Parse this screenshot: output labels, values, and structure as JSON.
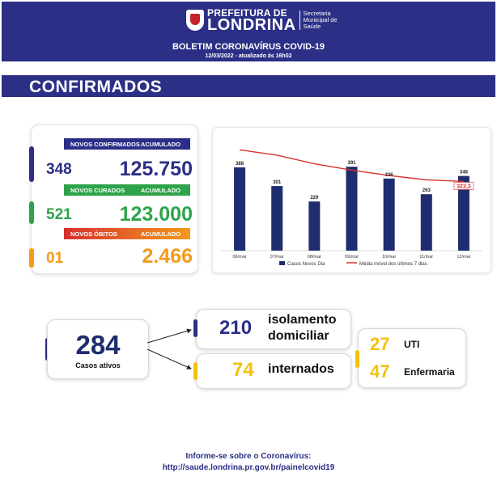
{
  "header": {
    "logo_line1": "PREFEITURA DE",
    "logo_line2": "LONDRINA",
    "secretaria": [
      "Secretaria",
      "Municipal de",
      "Saúde"
    ],
    "title": "BOLETIM CORONAVÍRUS COVID-19",
    "date": "12/03/2022 - atualizado às 16h02"
  },
  "section_title": "CONFIRMADOS",
  "stats": {
    "confirmados": {
      "label": "NOVOS CONFIRMADOS",
      "acc_label": "ACUMULADO",
      "new": "348",
      "total": "125.750",
      "color": "#2b2f86"
    },
    "curados": {
      "label": "NOVOS CURADOS",
      "acc_label": "ACUMULADO",
      "new": "521",
      "total": "123.000",
      "color": "#2ea34a"
    },
    "obitos": {
      "label": "NOVOS ÓBITOS",
      "acc_label": "ACUMULADO",
      "new": "01",
      "total": "2.466",
      "color": "#f39a1d"
    }
  },
  "chart_data": {
    "type": "bar",
    "categories": [
      "06/mar",
      "07/mar",
      "08/mar",
      "09/mar",
      "10/mar",
      "11/mar",
      "12/mar"
    ],
    "series": [
      {
        "name": "Casos Novos Dia",
        "type": "bar",
        "values": [
          388,
          301,
          229,
          391,
          336,
          263,
          348
        ],
        "color": "#1f2d6e"
      },
      {
        "name": "Média móvel dos últimos 7 dias",
        "type": "line",
        "values": [
          470,
          445,
          405,
          375,
          350,
          330,
          322.3
        ],
        "color": "#d7312f"
      }
    ],
    "highlight_label": "322,3",
    "ylim": [
      0,
      520
    ],
    "legend": "bottom"
  },
  "active": {
    "value": "284",
    "label": "Casos ativos"
  },
  "isolamento": {
    "value": "210",
    "label_line1": "isolamento",
    "label_line2": "domiciliar"
  },
  "internados": {
    "value": "74",
    "label": "internados"
  },
  "uti": {
    "value": "27",
    "label": "UTI"
  },
  "enfermaria": {
    "value": "47",
    "label": "Enfermaria"
  },
  "colors": {
    "navy": "#2b2f86",
    "yellow": "#f4c20d"
  },
  "footer": {
    "line1": "Informe-se sobre o Coronavírus:",
    "line2": "http://saude.londrina.pr.gov.br/painelcovid19"
  }
}
